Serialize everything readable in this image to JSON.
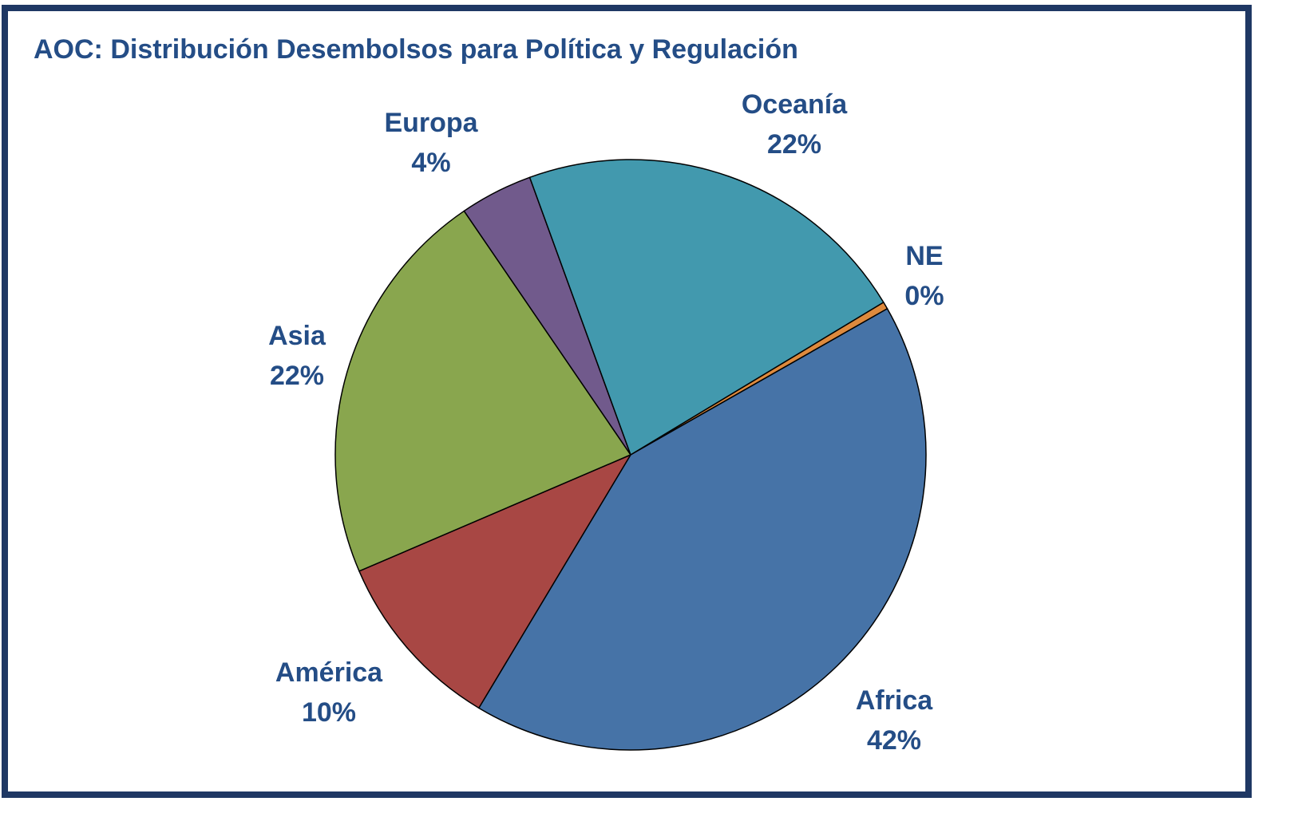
{
  "chart_data": {
    "type": "pie",
    "title": "AOC: Distribución Desembolsos para Política y Regulación",
    "categories": [
      "NE",
      "Africa",
      "América",
      "Asia",
      "Europa",
      "Oceanía"
    ],
    "values": [
      0.4,
      42,
      10,
      22,
      4,
      22
    ],
    "value_labels": [
      "0%",
      "42%",
      "10%",
      "22%",
      "4%",
      "22%"
    ],
    "colors": [
      "#de8a3e",
      "#4673a7",
      "#a84744",
      "#89a64e",
      "#715a8c",
      "#4299ae"
    ]
  }
}
